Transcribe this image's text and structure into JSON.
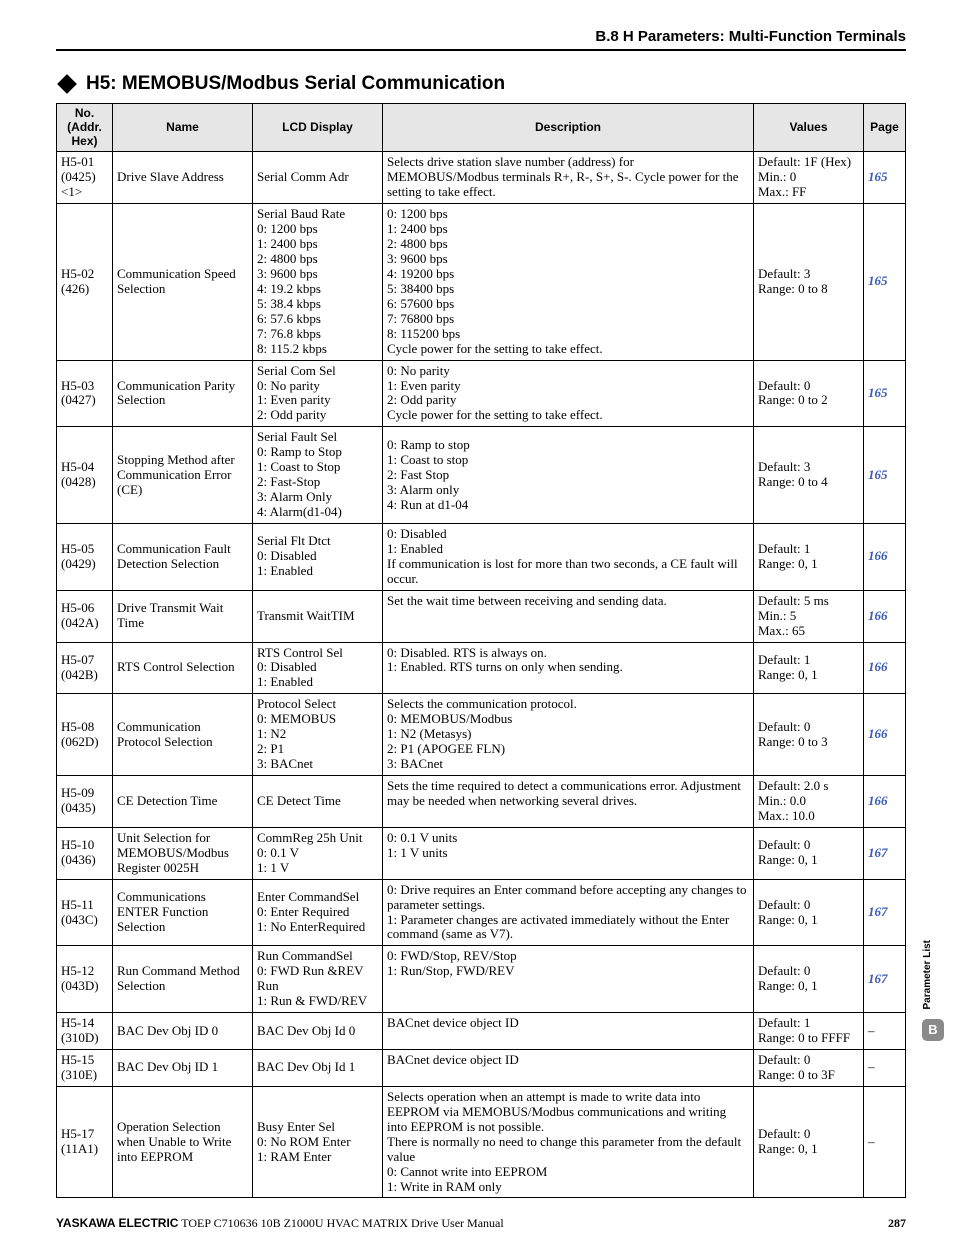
{
  "header": {
    "section": "B.8  H Parameters: Multi-Function Terminals"
  },
  "section": {
    "title": "H5: MEMOBUS/Modbus Serial Communication"
  },
  "table": {
    "headers": {
      "no": "No.\n(Addr.\nHex)",
      "name": "Name",
      "lcd": "LCD Display",
      "desc": "Description",
      "values": "Values",
      "page": "Page"
    },
    "rows": [
      {
        "no": "H5-01\n(0425)\n<1>",
        "name": "Drive Slave Address",
        "lcd": "Serial Comm Adr",
        "desc": "Selects drive station slave number (address) for MEMOBUS/Modbus terminals R+, R-, S+, S-. Cycle power for the setting to take effect.",
        "values": "Default: 1F (Hex)\nMin.: 0\nMax.: FF",
        "page": "165"
      },
      {
        "no": "H5-02\n(426)",
        "name": "Communication Speed Selection",
        "lcd": "Serial Baud Rate\n0: 1200 bps\n1: 2400 bps\n2: 4800 bps\n3: 9600 bps\n4: 19.2 kbps\n5: 38.4 kbps\n6: 57.6 kbps\n7: 76.8 kbps\n8: 115.2 kbps",
        "desc": "0: 1200 bps\n1: 2400 bps\n2: 4800 bps\n3: 9600 bps\n4: 19200 bps\n5: 38400 bps\n6: 57600 bps\n7: 76800 bps\n8: 115200 bps\nCycle power for the setting to take effect.",
        "values": "Default: 3\nRange: 0 to 8",
        "page": "165"
      },
      {
        "no": "H5-03\n(0427)",
        "name": "Communication Parity Selection",
        "lcd": "Serial Com Sel\n0: No parity\n1: Even parity\n2: Odd parity",
        "desc": "0: No parity\n1: Even parity\n2: Odd parity\nCycle power for the setting to take effect.",
        "values": "Default: 0\nRange: 0 to 2",
        "page": "165"
      },
      {
        "no": "H5-04\n(0428)",
        "name": "Stopping Method after Communication Error (CE)",
        "lcd": "Serial Fault Sel\n0: Ramp to Stop\n1: Coast to Stop\n2: Fast-Stop\n3: Alarm Only\n4: Alarm(d1-04)",
        "desc": "0: Ramp to stop\n1: Coast to stop\n2: Fast Stop\n3: Alarm only\n4: Run at d1-04",
        "values": "Default: 3\nRange: 0 to 4",
        "page": "165"
      },
      {
        "no": "H5-05\n(0429)",
        "name": "Communication Fault Detection Selection",
        "lcd": "Serial Flt Dtct\n0: Disabled\n1: Enabled",
        "desc": "0: Disabled\n1: Enabled\nIf communication is lost for more than two seconds, a CE fault will occur.",
        "values": "Default: 1\nRange: 0, 1",
        "page": "166"
      },
      {
        "no": "H5-06\n(042A)",
        "name": "Drive Transmit Wait Time",
        "lcd": "Transmit WaitTIM",
        "desc": "Set the wait time between receiving and sending data.",
        "values": "Default: 5 ms\nMin.: 5\nMax.: 65",
        "page": "166",
        "desc_valign": "top"
      },
      {
        "no": "H5-07\n(042B)",
        "name": "RTS Control Selection",
        "lcd": "RTS Control Sel\n0: Disabled\n1: Enabled",
        "desc": "0: Disabled. RTS is always on.\n1: Enabled. RTS turns on only when sending.",
        "values": "Default: 1\nRange: 0, 1",
        "page": "166",
        "desc_valign": "top"
      },
      {
        "no": "H5-08\n(062D)",
        "name": "Communication Protocol Selection",
        "lcd": "Protocol Select\n0: MEMOBUS\n1: N2\n2: P1\n3: BACnet",
        "desc": "Selects the communication protocol.\n0: MEMOBUS/Modbus\n1: N2 (Metasys)\n2: P1 (APOGEE FLN)\n3: BACnet",
        "values": "Default: 0\nRange: 0 to 3",
        "page": "166"
      },
      {
        "no": "H5-09\n(0435)",
        "name": "CE Detection Time",
        "lcd": "CE Detect Time",
        "desc": "Sets the time required to detect a communications error. Adjustment may be needed when networking several drives.",
        "values": "Default: 2.0 s\nMin.: 0.0\nMax.: 10.0",
        "page": "166",
        "desc_valign": "top"
      },
      {
        "no": "H5-10\n(0436)",
        "name": "Unit Selection for MEMOBUS/Modbus Register 0025H",
        "lcd": "CommReg 25h Unit\n0: 0.1 V\n1: 1 V",
        "desc": "0: 0.1 V units\n1: 1 V units",
        "values": "Default: 0\nRange: 0, 1",
        "page": "167",
        "desc_valign": "top"
      },
      {
        "no": "H5-11\n(043C)",
        "name": "Communications ENTER Function Selection",
        "lcd": "Enter CommandSel\n0: Enter Required\n1: No EnterRequired",
        "desc": "0: Drive requires an Enter command before accepting any changes to parameter settings.\n1: Parameter changes are activated immediately without the Enter command (same as V7).",
        "values": "Default: 0\nRange: 0, 1",
        "page": "167"
      },
      {
        "no": "H5-12\n(043D)",
        "name": "Run Command Method Selection",
        "lcd": "Run CommandSel\n0: FWD Run &REV Run\n1: Run & FWD/REV",
        "desc": "0: FWD/Stop, REV/Stop\n1: Run/Stop, FWD/REV",
        "values": "Default: 0\nRange: 0, 1",
        "page": "167",
        "desc_valign": "top"
      },
      {
        "no": "H5-14\n(310D)",
        "name": "BAC Dev Obj ID 0",
        "lcd": "BAC Dev Obj Id 0",
        "desc": "BACnet device object ID",
        "values": "Default: 1\nRange: 0 to FFFF",
        "page": "–",
        "desc_valign": "top"
      },
      {
        "no": "H5-15\n(310E)",
        "name": "BAC Dev Obj ID 1",
        "lcd": "BAC Dev Obj Id 1",
        "desc": "BACnet device object ID",
        "values": "Default: 0\nRange: 0 to 3F",
        "page": "–",
        "desc_valign": "top"
      },
      {
        "no": "H5-17\n(11A1)",
        "name": "Operation Selection when Unable to Write into EEPROM",
        "lcd": "Busy Enter Sel\n0: No ROM Enter\n1: RAM Enter",
        "desc": "Selects operation when an attempt is made to write data into EEPROM via MEMOBUS/Modbus communications and writing into EEPROM is not possible.\nThere is normally no need to change this parameter from the default value\n0: Cannot write into EEPROM\n1: Write in RAM only",
        "values": "Default: 0\nRange: 0, 1",
        "page": "–"
      }
    ]
  },
  "footer": {
    "brand": "YASKAWA ELECTRIC",
    "doc": " TOEP C710636 10B Z1000U HVAC MATRIX Drive User Manual",
    "page": "287"
  },
  "sidetab": {
    "label": "Parameter List",
    "badge": "B"
  }
}
